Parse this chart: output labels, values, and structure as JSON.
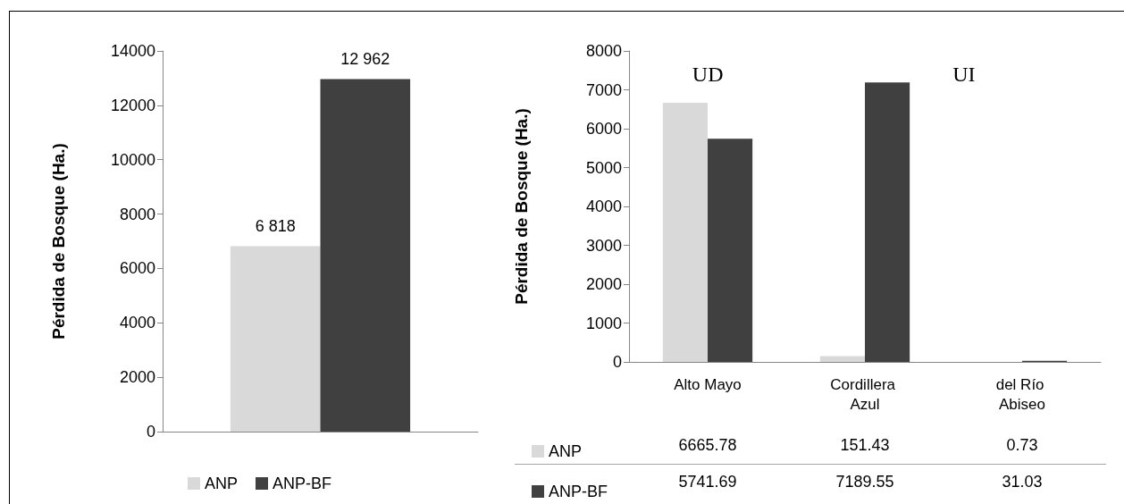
{
  "chart_data": [
    {
      "type": "bar",
      "ylabel": "Pérdida de Bosque (Ha.)",
      "categories": [
        null
      ],
      "series": [
        {
          "name": "ANP",
          "color": "#d9d9d9",
          "values": [
            6818
          ],
          "value_labels": [
            "6 818"
          ]
        },
        {
          "name": "ANP-BF",
          "color": "#404040",
          "values": [
            12962
          ],
          "value_labels": [
            "12 962"
          ]
        }
      ],
      "ylim": [
        0,
        14000
      ],
      "yticks": [
        0,
        2000,
        4000,
        6000,
        8000,
        10000,
        12000,
        14000
      ],
      "grid": false,
      "legend": "bottom"
    },
    {
      "type": "bar",
      "ylabel": "Pérdida de Bosque (Ha.)",
      "categories": [
        "Alto Mayo",
        "Cordillera Azul",
        "del Río Abiseo"
      ],
      "series": [
        {
          "name": "ANP",
          "color": "#d9d9d9",
          "values": [
            6665.78,
            151.43,
            0.73
          ]
        },
        {
          "name": "ANP-BF",
          "color": "#404040",
          "values": [
            5741.69,
            7189.55,
            31.03
          ]
        }
      ],
      "ylim": [
        0,
        8000
      ],
      "yticks": [
        0,
        1000,
        2000,
        3000,
        4000,
        5000,
        6000,
        7000,
        8000
      ],
      "grid": false,
      "legend": "bottom",
      "data_labels": true,
      "annotations": [
        "UD",
        "UI"
      ]
    }
  ]
}
